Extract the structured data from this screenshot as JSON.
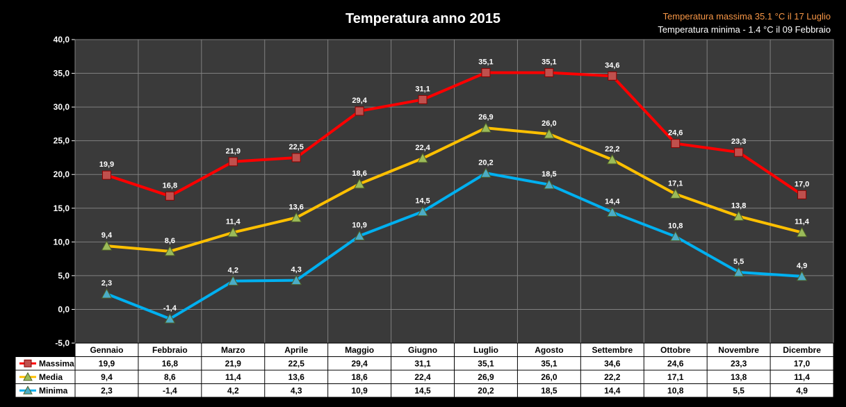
{
  "chart_data": {
    "type": "line",
    "title": "Temperatura anno 2015",
    "categories": [
      "Gennaio",
      "Febbraio",
      "Marzo",
      "Aprile",
      "Maggio",
      "Giugno",
      "Luglio",
      "Agosto",
      "Settembre",
      "Ottobre",
      "Novembre",
      "Dicembre"
    ],
    "series": [
      {
        "name": "Massima",
        "values": [
          19.9,
          16.8,
          21.9,
          22.5,
          29.4,
          31.1,
          35.1,
          35.1,
          34.6,
          24.6,
          23.3,
          17.0
        ],
        "color": "#ff0000",
        "marker": "square",
        "marker_color": "#c0504d"
      },
      {
        "name": "Media",
        "values": [
          9.4,
          8.6,
          11.4,
          13.6,
          18.6,
          22.4,
          26.9,
          26.0,
          22.2,
          17.1,
          13.8,
          11.4
        ],
        "color": "#ffc000",
        "marker": "triangle",
        "marker_color": "#9bbb59"
      },
      {
        "name": "Minima",
        "values": [
          2.3,
          -1.4,
          4.2,
          4.3,
          10.9,
          14.5,
          20.2,
          18.5,
          14.4,
          10.8,
          5.5,
          4.9
        ],
        "color": "#00b0f0",
        "marker": "triangle",
        "marker_color": "#4bacc6"
      }
    ],
    "ylim": [
      -5,
      40
    ],
    "yticks": [
      "-5,0",
      "0,0",
      "5,0",
      "10,0",
      "15,0",
      "20,0",
      "25,0",
      "30,0",
      "35,0",
      "40,0"
    ],
    "grid": true,
    "data_table": true,
    "decimal_separator": ",",
    "legend": "data-table-left"
  },
  "annotations": {
    "max_text": "Temperatura massima 35.1 °C  il  17 Luglio",
    "max_color": "#f79646",
    "min_text": "Temperatura minima - 1.4 °C il 09 Febbraio",
    "min_color": "#ffffff"
  },
  "colors": {
    "background": "#000000",
    "plot_area": "#3a3a3a",
    "grid": "#808080"
  }
}
